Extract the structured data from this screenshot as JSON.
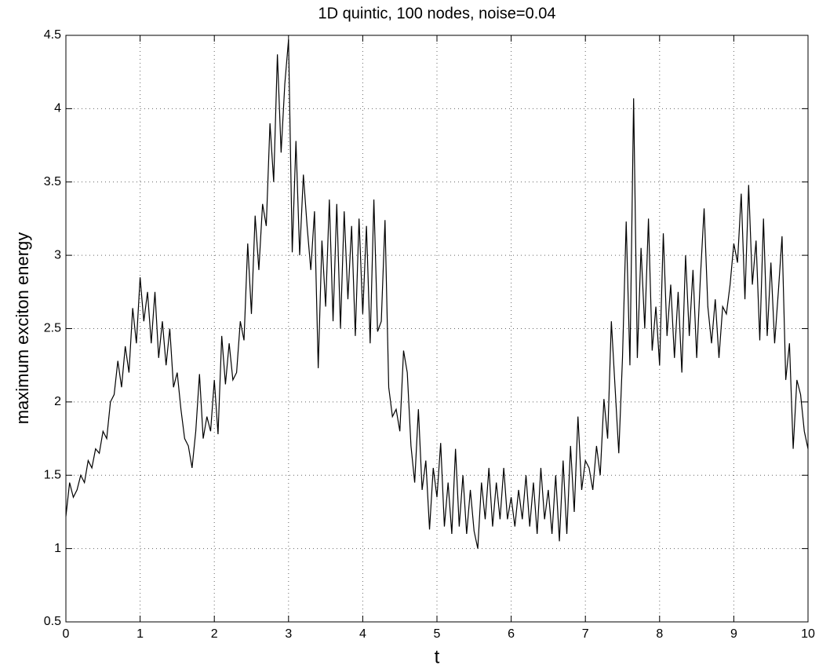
{
  "chart_data": {
    "type": "line",
    "title": "1D quintic, 100 nodes, noise=0.04",
    "xlabel": "t",
    "ylabel": "maximum exciton energy",
    "color": "#000000",
    "grid": true,
    "xlim": [
      0,
      10
    ],
    "ylim": [
      0.5,
      4.5
    ],
    "xticks": [
      0,
      1,
      2,
      3,
      4,
      5,
      6,
      7,
      8,
      9,
      10
    ],
    "yticks": [
      0.5,
      1,
      1.5,
      2,
      2.5,
      3,
      3.5,
      4,
      4.5
    ],
    "x": [
      0,
      0.05,
      0.1,
      0.15,
      0.2,
      0.25,
      0.3,
      0.35,
      0.4,
      0.45,
      0.5,
      0.55,
      0.6,
      0.65,
      0.7,
      0.75,
      0.8,
      0.85,
      0.9,
      0.95,
      1,
      1.05,
      1.1,
      1.15,
      1.2,
      1.25,
      1.3,
      1.35,
      1.4,
      1.45,
      1.5,
      1.55,
      1.6,
      1.65,
      1.7,
      1.75,
      1.8,
      1.85,
      1.9,
      1.95,
      2,
      2.05,
      2.1,
      2.15,
      2.2,
      2.25,
      2.3,
      2.35,
      2.4,
      2.45,
      2.5,
      2.55,
      2.6,
      2.65,
      2.7,
      2.75,
      2.8,
      2.85,
      2.9,
      2.95,
      3,
      3.05,
      3.1,
      3.15,
      3.2,
      3.25,
      3.3,
      3.35,
      3.4,
      3.45,
      3.5,
      3.55,
      3.6,
      3.65,
      3.7,
      3.75,
      3.8,
      3.85,
      3.9,
      3.95,
      4,
      4.05,
      4.1,
      4.15,
      4.2,
      4.25,
      4.3,
      4.35,
      4.4,
      4.45,
      4.5,
      4.55,
      4.6,
      4.65,
      4.7,
      4.75,
      4.8,
      4.85,
      4.9,
      4.95,
      5,
      5.05,
      5.1,
      5.15,
      5.2,
      5.25,
      5.3,
      5.35,
      5.4,
      5.45,
      5.5,
      5.55,
      5.6,
      5.65,
      5.7,
      5.75,
      5.8,
      5.85,
      5.9,
      5.95,
      6,
      6.05,
      6.1,
      6.15,
      6.2,
      6.25,
      6.3,
      6.35,
      6.4,
      6.45,
      6.5,
      6.55,
      6.6,
      6.65,
      6.7,
      6.75,
      6.8,
      6.85,
      6.9,
      6.95,
      7,
      7.05,
      7.1,
      7.15,
      7.2,
      7.25,
      7.3,
      7.35,
      7.4,
      7.45,
      7.5,
      7.55,
      7.6,
      7.65,
      7.7,
      7.75,
      7.8,
      7.85,
      7.9,
      7.95,
      8,
      8.05,
      8.1,
      8.15,
      8.2,
      8.25,
      8.3,
      8.35,
      8.4,
      8.45,
      8.5,
      8.55,
      8.6,
      8.65,
      8.7,
      8.75,
      8.8,
      8.85,
      8.9,
      8.95,
      9,
      9.05,
      9.1,
      9.15,
      9.2,
      9.25,
      9.3,
      9.35,
      9.4,
      9.45,
      9.5,
      9.55,
      9.6,
      9.65,
      9.7,
      9.75,
      9.8,
      9.85,
      9.9,
      9.95,
      10
    ],
    "values": [
      1.22,
      1.45,
      1.35,
      1.4,
      1.5,
      1.45,
      1.6,
      1.55,
      1.68,
      1.65,
      1.8,
      1.75,
      2.0,
      2.05,
      2.28,
      2.1,
      2.38,
      2.2,
      2.64,
      2.4,
      2.85,
      2.55,
      2.75,
      2.4,
      2.75,
      2.3,
      2.55,
      2.25,
      2.5,
      2.1,
      2.2,
      1.95,
      1.75,
      1.7,
      1.55,
      1.8,
      2.19,
      1.75,
      1.9,
      1.8,
      2.15,
      1.78,
      2.45,
      2.12,
      2.4,
      2.15,
      2.2,
      2.55,
      2.42,
      3.08,
      2.6,
      3.27,
      2.9,
      3.35,
      3.2,
      3.9,
      3.5,
      4.37,
      3.7,
      4.17,
      4.47,
      3.02,
      3.78,
      3.0,
      3.55,
      3.2,
      2.9,
      3.3,
      2.23,
      3.1,
      2.65,
      3.38,
      2.55,
      3.35,
      2.5,
      3.3,
      2.7,
      3.2,
      2.45,
      3.25,
      2.6,
      3.2,
      2.4,
      3.38,
      2.48,
      2.55,
      3.24,
      2.1,
      1.9,
      1.95,
      1.8,
      2.35,
      2.2,
      1.7,
      1.45,
      1.95,
      1.4,
      1.6,
      1.13,
      1.55,
      1.35,
      1.72,
      1.15,
      1.45,
      1.1,
      1.68,
      1.15,
      1.5,
      1.1,
      1.4,
      1.12,
      1.0,
      1.45,
      1.2,
      1.55,
      1.15,
      1.45,
      1.2,
      1.55,
      1.2,
      1.35,
      1.15,
      1.4,
      1.2,
      1.5,
      1.15,
      1.45,
      1.1,
      1.55,
      1.2,
      1.4,
      1.1,
      1.5,
      1.05,
      1.6,
      1.1,
      1.7,
      1.25,
      1.9,
      1.4,
      1.6,
      1.55,
      1.4,
      1.7,
      1.5,
      2.02,
      1.75,
      2.55,
      2.1,
      1.65,
      2.3,
      3.23,
      2.25,
      4.07,
      2.3,
      3.05,
      2.5,
      3.25,
      2.35,
      2.65,
      2.25,
      3.15,
      2.45,
      2.8,
      2.3,
      2.75,
      2.2,
      3.0,
      2.45,
      2.9,
      2.3,
      2.85,
      3.32,
      2.65,
      2.4,
      2.7,
      2.3,
      2.65,
      2.6,
      2.8,
      3.08,
      2.95,
      3.42,
      2.7,
      3.48,
      2.8,
      3.1,
      2.42,
      3.25,
      2.45,
      2.95,
      2.4,
      2.75,
      3.13,
      2.15,
      2.4,
      1.68,
      2.15,
      2.05,
      1.8,
      1.68
    ]
  }
}
